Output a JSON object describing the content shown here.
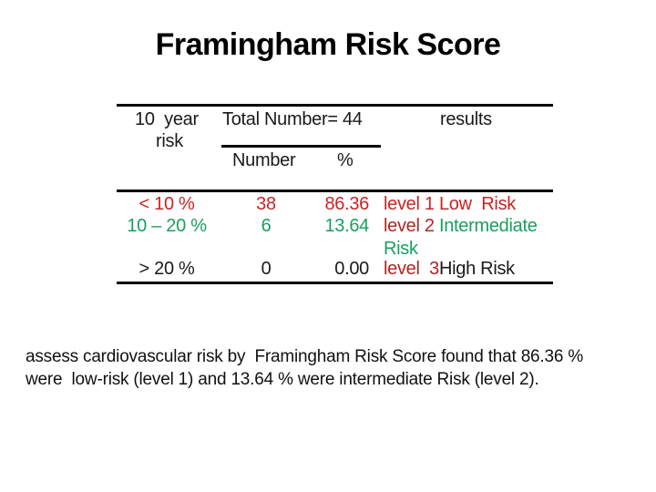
{
  "slide": {
    "title": "Framingham Risk Score"
  },
  "table": {
    "header": {
      "col_risk_line1": "10  year",
      "col_risk_line2": "risk",
      "col_total": "Total Number= 44",
      "col_results": "results",
      "sub_number": "Number",
      "sub_pct": "%"
    },
    "rows": [
      {
        "risk": "< 10 %",
        "number": "38",
        "pct": "86.36",
        "level": "level 1",
        "desc": " Low  Risk"
      },
      {
        "risk": "10 – 20 %",
        "number": "6",
        "pct": "13.64",
        "level": "level 2",
        "desc": " Intermediate",
        "desc_line2": "Risk"
      },
      {
        "risk": "> 20 %",
        "number": "0",
        "pct": "0.00",
        "level": "level  3",
        "desc": "High Risk"
      }
    ]
  },
  "footer": {
    "line1": "assess cardiovascular risk by  Framingham Risk Score found that 86.36 %",
    "line2": "were  low-risk (level 1) and 13.64 % were intermediate Risk (level 2)."
  },
  "colors": {
    "low_risk_red": "#cc2323",
    "level_label_red": "#b32424",
    "intermediate_green": "#17a05f",
    "high_risk_black": "#1a1a1a",
    "background": "#ffffff"
  }
}
